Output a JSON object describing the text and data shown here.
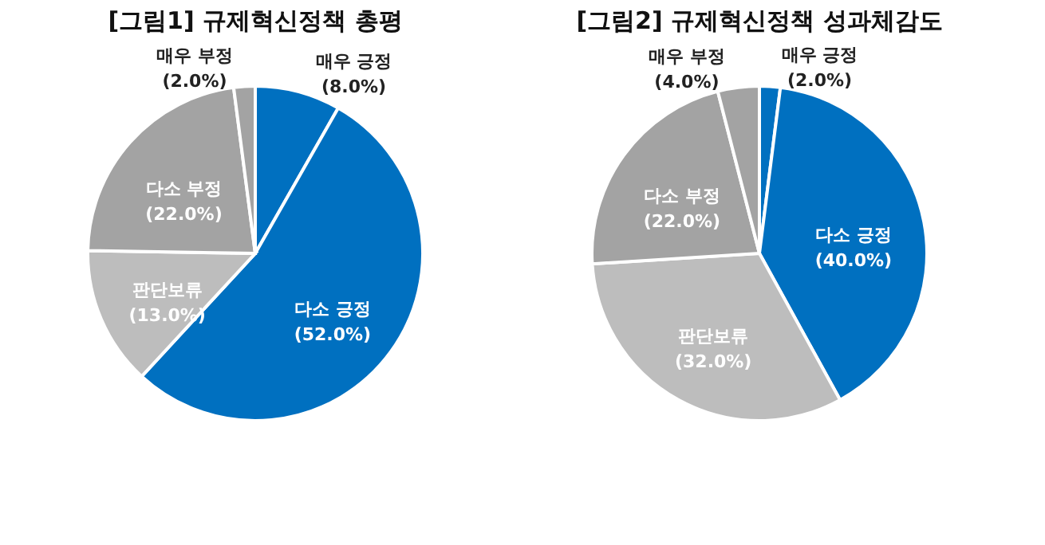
{
  "chart_data": [
    {
      "type": "pie",
      "title": "[그림1] 규제혁신정책 총평",
      "categories": [
        "매우 긍정",
        "다소 긍정",
        "판단보류",
        "다소 부정",
        "매우 부정"
      ],
      "values": [
        8,
        52,
        13,
        22,
        2
      ],
      "value_labels": [
        "(8.0%)",
        "(52.0%)",
        "(13.0%)",
        "(22.0%)",
        "(2.0%)"
      ],
      "colors": [
        "#0070c0",
        "#0070c0",
        "#bdbdbd",
        "#a3a3a3",
        "#a3a3a3"
      ]
    },
    {
      "type": "pie",
      "title": "[그림2] 규제혁신정책 성과체감도",
      "categories": [
        "매우 긍정",
        "다소 긍정",
        "판단보류",
        "다소 부정",
        "매우 부정"
      ],
      "values": [
        2,
        40,
        32,
        22,
        4
      ],
      "value_labels": [
        "(2.0%)",
        "(40.0%)",
        "(32.0%)",
        "(22.0%)",
        "(4.0%)"
      ],
      "colors": [
        "#0070c0",
        "#0070c0",
        "#bdbdbd",
        "#a3a3a3",
        "#a3a3a3"
      ]
    }
  ]
}
